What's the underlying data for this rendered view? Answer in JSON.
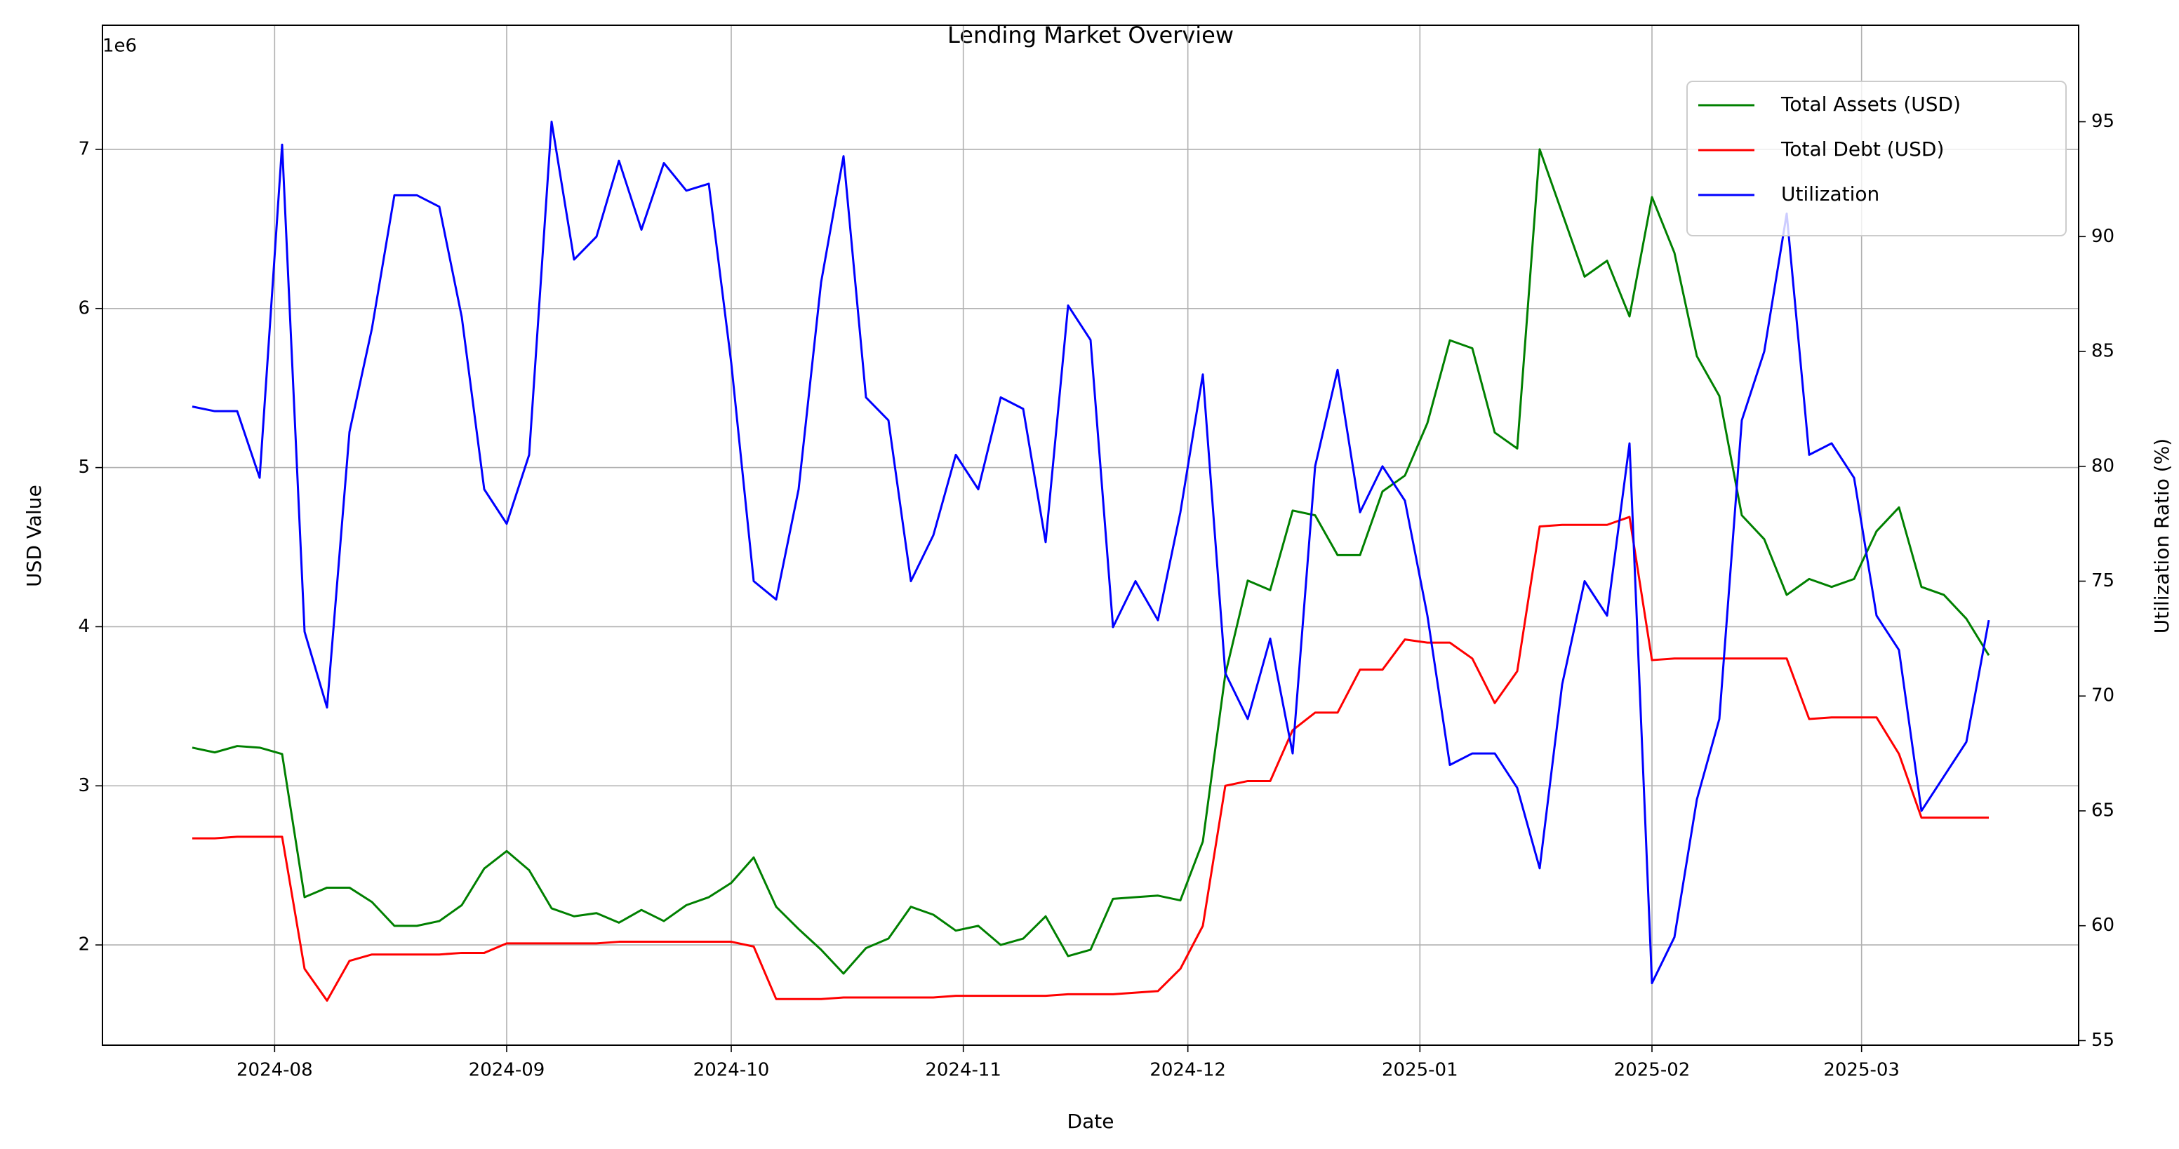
{
  "chart_data": {
    "type": "line",
    "title": "Lending Market Overview",
    "xlabel": "Date",
    "ylabel": "USD Value",
    "y2label": "Utilization Ratio (%)",
    "y_offset_label": "1e6",
    "x": [
      "2024-07-21",
      "2024-07-24",
      "2024-07-27",
      "2024-07-30",
      "2024-08-02",
      "2024-08-05",
      "2024-08-08",
      "2024-08-11",
      "2024-08-14",
      "2024-08-17",
      "2024-08-20",
      "2024-08-23",
      "2024-08-26",
      "2024-08-29",
      "2024-09-01",
      "2024-09-04",
      "2024-09-07",
      "2024-09-10",
      "2024-09-13",
      "2024-09-16",
      "2024-09-19",
      "2024-09-22",
      "2024-09-25",
      "2024-09-28",
      "2024-10-01",
      "2024-10-04",
      "2024-10-07",
      "2024-10-10",
      "2024-10-13",
      "2024-10-16",
      "2024-10-19",
      "2024-10-22",
      "2024-10-25",
      "2024-10-28",
      "2024-10-31",
      "2024-11-03",
      "2024-11-06",
      "2024-11-09",
      "2024-11-12",
      "2024-11-15",
      "2024-11-18",
      "2024-11-21",
      "2024-11-24",
      "2024-11-27",
      "2024-11-30",
      "2024-12-03",
      "2024-12-06",
      "2024-12-09",
      "2024-12-12",
      "2024-12-15",
      "2024-12-18",
      "2024-12-21",
      "2024-12-24",
      "2024-12-27",
      "2024-12-30",
      "2025-01-02",
      "2025-01-05",
      "2025-01-08",
      "2025-01-11",
      "2025-01-14",
      "2025-01-17",
      "2025-01-20",
      "2025-01-23",
      "2025-01-26",
      "2025-01-29",
      "2025-02-01",
      "2025-02-04",
      "2025-02-07",
      "2025-02-10",
      "2025-02-13",
      "2025-02-16",
      "2025-02-19",
      "2025-02-22",
      "2025-02-25",
      "2025-02-28",
      "2025-03-03",
      "2025-03-06",
      "2025-03-09",
      "2025-03-12",
      "2025-03-15",
      "2025-03-18"
    ],
    "series": [
      {
        "name": "Total Assets (USD)",
        "color": "#008000",
        "axis": "y",
        "values": [
          3240000,
          3210000,
          3250000,
          3240000,
          3200000,
          2300000,
          2360000,
          2360000,
          2270000,
          2120000,
          2120000,
          2150000,
          2250000,
          2480000,
          2590000,
          2470000,
          2230000,
          2180000,
          2200000,
          2140000,
          2220000,
          2150000,
          2250000,
          2300000,
          2390000,
          2550000,
          2240000,
          2100000,
          1970000,
          1820000,
          1980000,
          2040000,
          2240000,
          2190000,
          2090000,
          2120000,
          2000000,
          2040000,
          2180000,
          1930000,
          1970000,
          2290000,
          2300000,
          2310000,
          2280000,
          2650000,
          3700000,
          4290000,
          4230000,
          4730000,
          4700000,
          4450000,
          4450000,
          4850000,
          4950000,
          5280000,
          5800000,
          5750000,
          5220000,
          5120000,
          7000000,
          6600000,
          6200000,
          6300000,
          5950000,
          6700000,
          6350000,
          5700000,
          5450000,
          4700000,
          4550000,
          4200000,
          4300000,
          4250000,
          4300000,
          4600000,
          4750000,
          4250000,
          4200000,
          4050000,
          3820000
        ]
      },
      {
        "name": "Total Debt (USD)",
        "color": "#ff0000",
        "axis": "y",
        "values": [
          2670000,
          2670000,
          2680000,
          2680000,
          2680000,
          1850000,
          1650000,
          1900000,
          1940000,
          1940000,
          1940000,
          1940000,
          1950000,
          1950000,
          2010000,
          2010000,
          2010000,
          2010000,
          2010000,
          2020000,
          2020000,
          2020000,
          2020000,
          2020000,
          2020000,
          1990000,
          1660000,
          1660000,
          1660000,
          1670000,
          1670000,
          1670000,
          1670000,
          1670000,
          1680000,
          1680000,
          1680000,
          1680000,
          1680000,
          1690000,
          1690000,
          1690000,
          1700000,
          1710000,
          1850000,
          2120000,
          3000000,
          3030000,
          3030000,
          3350000,
          3460000,
          3460000,
          3730000,
          3730000,
          3920000,
          3900000,
          3900000,
          3800000,
          3520000,
          3720000,
          4630000,
          4640000,
          4640000,
          4640000,
          4690000,
          3790000,
          3800000,
          3800000,
          3800000,
          3800000,
          3800000,
          3800000,
          3420000,
          3430000,
          3430000,
          3430000,
          3200000,
          2800000,
          2800000,
          2800000,
          2800000
        ]
      },
      {
        "name": "Utilization",
        "color": "#0000ff",
        "axis": "y2",
        "values": [
          82.6,
          82.4,
          82.4,
          79.5,
          94.0,
          72.8,
          69.5,
          81.5,
          86.0,
          91.8,
          91.8,
          91.3,
          86.5,
          79.0,
          77.5,
          80.5,
          95.0,
          89.0,
          90.0,
          93.3,
          90.3,
          93.2,
          92.0,
          92.3,
          84.5,
          75.0,
          74.2,
          79.0,
          88.0,
          93.5,
          83.0,
          82.0,
          75.0,
          77.0,
          80.5,
          79.0,
          83.0,
          82.5,
          76.7,
          87.0,
          85.5,
          73.0,
          75.0,
          73.3,
          78.0,
          84.0,
          71.0,
          69.0,
          72.5,
          67.5,
          80.0,
          84.2,
          78.0,
          80.0,
          78.5,
          73.5,
          67.0,
          67.5,
          67.5,
          66.0,
          62.5,
          70.5,
          75.0,
          73.5,
          81.0,
          57.5,
          59.5,
          65.5,
          69.0,
          82.0,
          85.0,
          91.0,
          80.5,
          81.0,
          79.5,
          73.5,
          72.0,
          65.0,
          66.5,
          68.0,
          73.3
        ]
      }
    ],
    "xlim": [
      "2024-07-09",
      "2025-03-30"
    ],
    "xticks": [
      "2024-08",
      "2024-09",
      "2024-10",
      "2024-11",
      "2024-12",
      "2025-01",
      "2025-02",
      "2025-03"
    ],
    "ylim": [
      1370000,
      7780000
    ],
    "yticks": [
      {
        "value": 2000000,
        "label": "2"
      },
      {
        "value": 3000000,
        "label": "3"
      },
      {
        "value": 4000000,
        "label": "4"
      },
      {
        "value": 5000000,
        "label": "5"
      },
      {
        "value": 6000000,
        "label": "6"
      },
      {
        "value": 7000000,
        "label": "7"
      }
    ],
    "y2lim": [
      54.8,
      99.2
    ],
    "y2ticks": [
      55,
      60,
      65,
      70,
      75,
      80,
      85,
      90,
      95
    ],
    "grid": true,
    "legend": "upper right"
  }
}
